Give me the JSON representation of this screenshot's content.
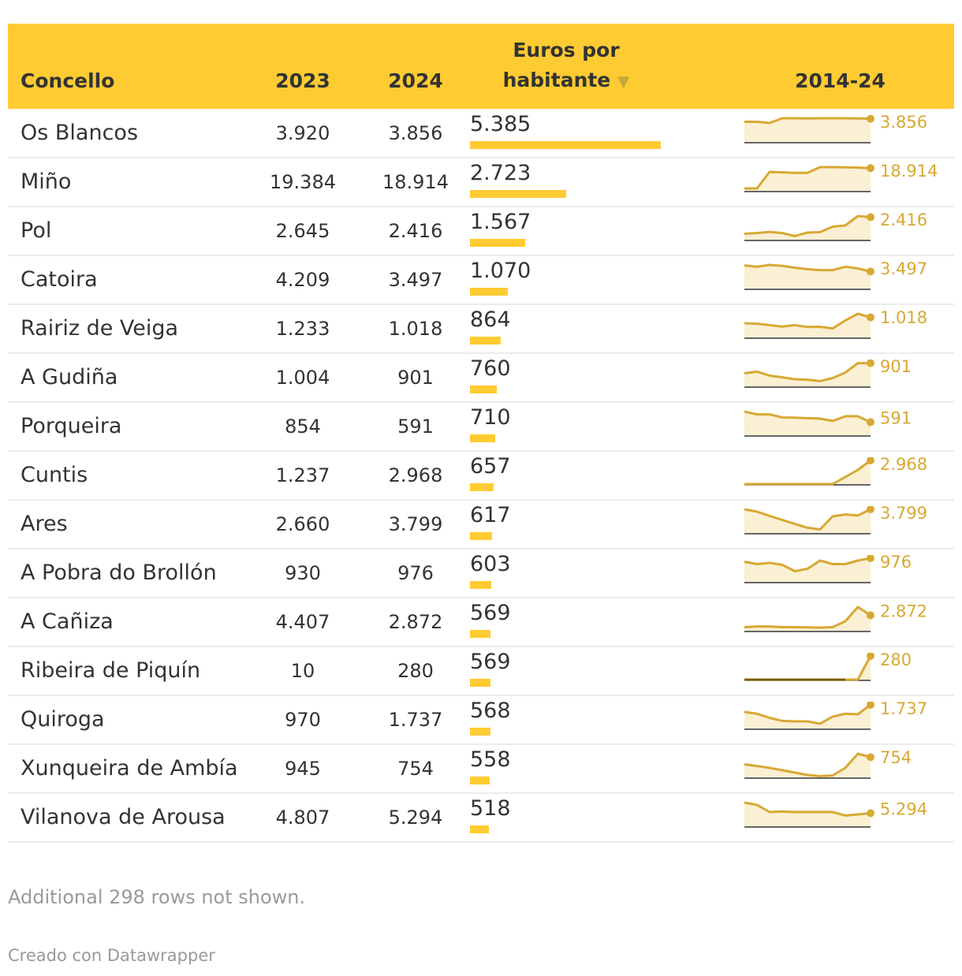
{
  "chart_data": {
    "type": "table",
    "headers": {
      "name": "Concello",
      "y2023": "2023",
      "y2024": "2024",
      "per_capita_line1": "Euros por",
      "per_capita_line2": "habitante",
      "sort_arrow": "▼",
      "spark": "2014-24"
    },
    "colors": {
      "header_bg": "#ffcb32",
      "bar": "#ffcb32",
      "spark_line": "#d8a833",
      "spark_fill": "#fbf0d3",
      "spark_flat": "#7a5a00"
    },
    "bar_max": 5385,
    "rows": [
      {
        "name": "Os Blancos",
        "y2023": "3.920",
        "y2024": "3.856",
        "per_capita": "5.385",
        "per_capita_value": 5385,
        "last_label": "3.856",
        "spark": [
          0.85,
          0.85,
          0.8,
          1.0,
          1.0,
          0.99,
          1.0,
          1.0,
          1.0,
          0.99,
          0.98
        ]
      },
      {
        "name": "Miño",
        "y2023": "19.384",
        "y2024": "18.914",
        "per_capita": "2.723",
        "per_capita_value": 2723,
        "last_label": "18.914",
        "spark": [
          0.1,
          0.1,
          0.8,
          0.78,
          0.76,
          0.76,
          1.0,
          1.0,
          0.99,
          0.98,
          0.96
        ]
      },
      {
        "name": "Pol",
        "y2023": "2.645",
        "y2024": "2.416",
        "per_capita": "1.567",
        "per_capita_value": 1567,
        "last_label": "2.416",
        "spark": [
          0.25,
          0.28,
          0.33,
          0.28,
          0.15,
          0.3,
          0.32,
          0.55,
          0.6,
          1.0,
          0.95
        ]
      },
      {
        "name": "Catoira",
        "y2023": "4.209",
        "y2024": "3.497",
        "per_capita": "1.070",
        "per_capita_value": 1070,
        "last_label": "3.497",
        "spark": [
          0.98,
          0.92,
          1.0,
          0.96,
          0.88,
          0.82,
          0.78,
          0.78,
          0.92,
          0.85,
          0.72
        ]
      },
      {
        "name": "Rairiz de Veiga",
        "y2023": "1.233",
        "y2024": "1.018",
        "per_capita": "864",
        "per_capita_value": 864,
        "last_label": "1.018",
        "spark": [
          0.6,
          0.58,
          0.52,
          0.46,
          0.52,
          0.44,
          0.45,
          0.38,
          0.72,
          1.0,
          0.85
        ]
      },
      {
        "name": "A Gudiña",
        "y2023": "1.004",
        "y2024": "901",
        "per_capita": "760",
        "per_capita_value": 760,
        "last_label": "901",
        "spark": [
          0.55,
          0.62,
          0.45,
          0.38,
          0.3,
          0.28,
          0.22,
          0.35,
          0.58,
          0.98,
          0.98
        ]
      },
      {
        "name": "Porqueira",
        "y2023": "854",
        "y2024": "591",
        "per_capita": "710",
        "per_capita_value": 710,
        "last_label": "591",
        "spark": [
          1.0,
          0.88,
          0.88,
          0.75,
          0.74,
          0.72,
          0.7,
          0.6,
          0.8,
          0.8,
          0.55
        ]
      },
      {
        "name": "Cuntis",
        "y2023": "1.237",
        "y2024": "2.968",
        "per_capita": "657",
        "per_capita_value": 657,
        "last_label": "2.968",
        "spark": [
          0.0,
          0.0,
          0.0,
          0.0,
          0.0,
          0.0,
          0.0,
          0.0,
          0.3,
          0.6,
          1.0
        ]
      },
      {
        "name": "Ares",
        "y2023": "2.660",
        "y2024": "3.799",
        "per_capita": "617",
        "per_capita_value": 617,
        "last_label": "3.799",
        "spark": [
          1.0,
          0.9,
          0.72,
          0.55,
          0.38,
          0.22,
          0.15,
          0.7,
          0.78,
          0.74,
          1.0
        ]
      },
      {
        "name": "A Pobra do Brollón",
        "y2023": "930",
        "y2024": "976",
        "per_capita": "603",
        "per_capita_value": 603,
        "last_label": "976",
        "spark": [
          0.85,
          0.75,
          0.8,
          0.72,
          0.45,
          0.55,
          0.9,
          0.75,
          0.75,
          0.9,
          1.0
        ]
      },
      {
        "name": "A Cañiza",
        "y2023": "4.407",
        "y2024": "2.872",
        "per_capita": "569",
        "per_capita_value": 569,
        "last_label": "2.872",
        "spark": [
          0.15,
          0.18,
          0.18,
          0.15,
          0.15,
          0.14,
          0.13,
          0.15,
          0.4,
          1.0,
          0.65
        ]
      },
      {
        "name": "Ribeira de Piquín",
        "y2023": "10",
        "y2024": "280",
        "per_capita": "569",
        "per_capita_value": 569,
        "last_label": "280",
        "spark": [
          0.0,
          0.0,
          0.0,
          0.0,
          0.0,
          0.0,
          0.0,
          0.0,
          0.0,
          0.0,
          1.0
        ]
      },
      {
        "name": "Quiroga",
        "y2023": "970",
        "y2024": "1.737",
        "per_capita": "568",
        "per_capita_value": 568,
        "last_label": "1.737",
        "spark": [
          0.7,
          0.62,
          0.45,
          0.32,
          0.3,
          0.3,
          0.2,
          0.5,
          0.62,
          0.6,
          1.0
        ]
      },
      {
        "name": "Xunqueira de Ambía",
        "y2023": "945",
        "y2024": "754",
        "per_capita": "558",
        "per_capita_value": 558,
        "last_label": "754",
        "spark": [
          0.55,
          0.48,
          0.4,
          0.3,
          0.2,
          0.1,
          0.05,
          0.08,
          0.4,
          1.0,
          0.85
        ]
      },
      {
        "name": "Vilanova de Arousa",
        "y2023": "4.807",
        "y2024": "5.294",
        "per_capita": "518",
        "per_capita_value": 518,
        "last_label": "5.294",
        "spark": [
          1.0,
          0.9,
          0.6,
          0.62,
          0.6,
          0.6,
          0.6,
          0.6,
          0.45,
          0.5,
          0.55
        ]
      }
    ]
  },
  "footer": {
    "note": "Additional 298 rows not shown.",
    "credit": "Creado con Datawrapper"
  }
}
